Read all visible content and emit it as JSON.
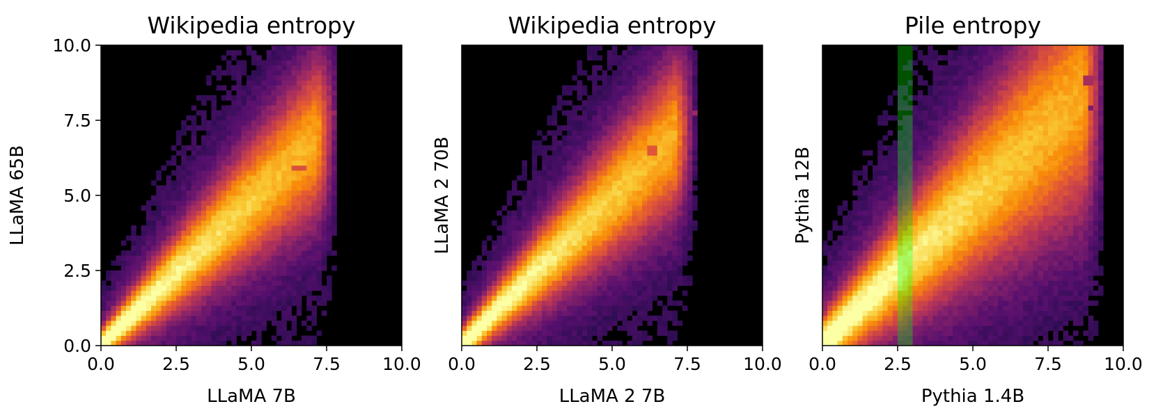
{
  "chart_data": [
    {
      "type": "heatmap",
      "title": "Wikipedia entropy",
      "xlabel": "LLaMA 7B",
      "ylabel": "LLaMA 65B",
      "xlim": [
        0,
        10
      ],
      "ylim": [
        0,
        10
      ],
      "xticks": [
        "0.0",
        "2.5",
        "5.0",
        "7.5",
        "10.0"
      ],
      "yticks": [
        "0.0",
        "2.5",
        "5.0",
        "7.5",
        "10.0"
      ],
      "show_yticks": true,
      "colormap": "inferno",
      "background": "#000000",
      "density_model": {
        "slope": 0.95,
        "intercept": 0.05,
        "spread_base": 0.3,
        "spread_scale": 0.2,
        "decay": 0.35,
        "x_max": 7.6,
        "point_mass": [
          0.25,
          0.12
        ],
        "hot_spots": [
          {
            "x": [
              6.3,
              6.9
            ],
            "y": [
              5.8,
              5.95
            ],
            "value": 0.6
          },
          {
            "x": [
              7.7,
              7.85
            ],
            "y": [
              7.7,
              7.85
            ],
            "value": 0.42
          }
        ]
      },
      "highlight_band": null
    },
    {
      "type": "heatmap",
      "title": "Wikipedia entropy",
      "xlabel": "LLaMA 2 7B",
      "ylabel": "LLaMA 2 70B",
      "xlim": [
        0,
        10
      ],
      "ylim": [
        0,
        10
      ],
      "xticks": [
        "0.0",
        "2.5",
        "5.0",
        "7.5",
        "10.0"
      ],
      "yticks": [],
      "show_yticks": false,
      "colormap": "inferno",
      "background": "#000000",
      "density_model": {
        "slope": 0.97,
        "intercept": 0.05,
        "spread_base": 0.3,
        "spread_scale": 0.2,
        "decay": 0.35,
        "x_max": 7.5,
        "point_mass": [
          0.25,
          0.12
        ],
        "hot_spots": [
          {
            "x": [
              6.1,
              6.5
            ],
            "y": [
              6.3,
              6.65
            ],
            "value": 0.62
          },
          {
            "x": [
              7.7,
              7.85
            ],
            "y": [
              7.6,
              7.75
            ],
            "value": 0.42
          }
        ]
      },
      "highlight_band": null
    },
    {
      "type": "heatmap",
      "title": "Pile entropy",
      "xlabel": "Pythia 1.4B",
      "ylabel": "Pythia 12B",
      "xlim": [
        0,
        10
      ],
      "ylim": [
        0,
        10
      ],
      "xticks": [
        "0.0",
        "2.5",
        "5.0",
        "7.5",
        "10.0"
      ],
      "yticks": [],
      "show_yticks": false,
      "colormap": "inferno",
      "background": "#000000",
      "density_model": {
        "slope": 0.95,
        "intercept": 0.1,
        "spread_base": 0.5,
        "spread_scale": 0.25,
        "decay": 0.28,
        "x_max": 9.1,
        "point_mass": [
          0.3,
          0.15
        ],
        "hot_spots": [
          {
            "x": [
              8.7,
              9.0
            ],
            "y": [
              8.7,
              8.95
            ],
            "value": 0.45
          },
          {
            "x": [
              8.8,
              9.0
            ],
            "y": [
              7.8,
              8.0
            ],
            "value": 0.35
          }
        ]
      },
      "highlight_band": {
        "x": [
          2.5,
          3.0
        ],
        "color": "#00ff00",
        "opacity": 0.32
      }
    }
  ]
}
